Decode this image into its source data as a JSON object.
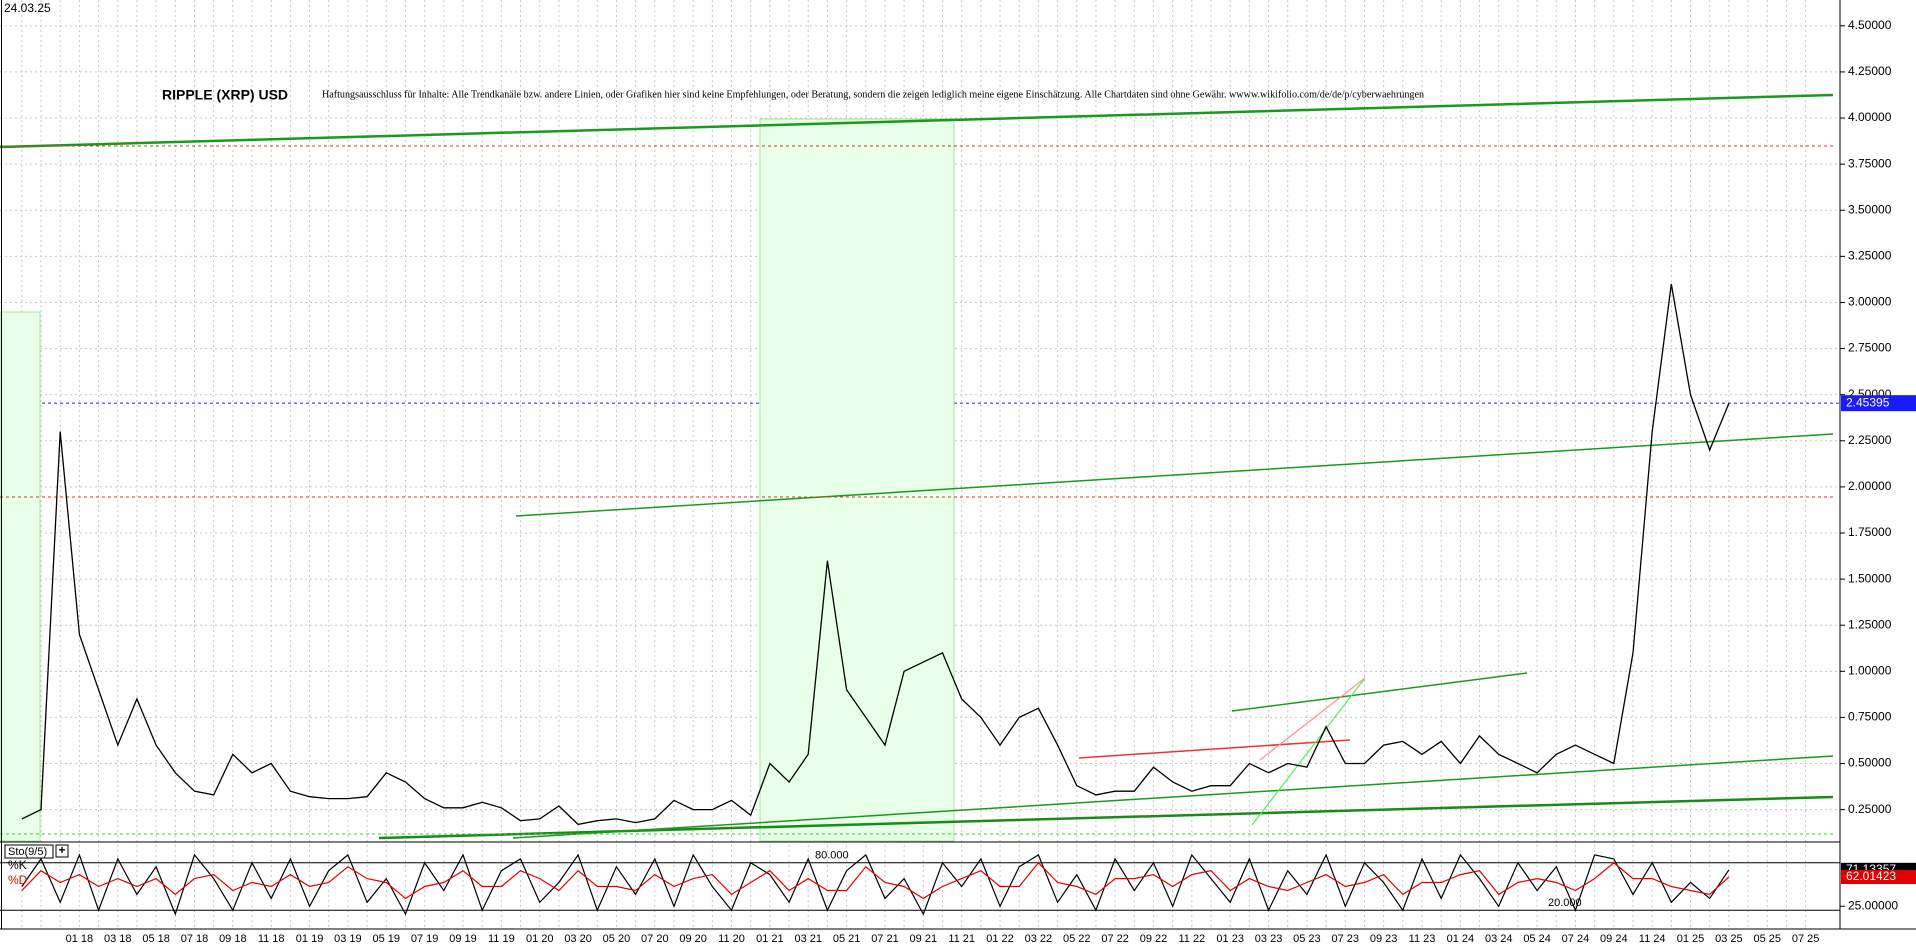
{
  "date": "24.03.25",
  "chart_data": [
    {
      "type": "line",
      "title": "RIPPLE (XRP) USD",
      "subtitle": "Haftungsausschluss für Inhalte: Alle Trendkanäle bzw. andere Linien, oder Grafiken hier sind keine Empfehlungen, oder Beratung, sondern die zeigen lediglich meine eigene Einschätzung. Alle Chartdaten sind ohne Gewähr.  wwww.wikifolio.com/de/de/p/cyberwaehrungen",
      "categories": [
        null,
        null,
        null,
        "01 18",
        null,
        "03 18",
        null,
        "05 18",
        null,
        "07 18",
        null,
        "09 18",
        null,
        "11 18",
        null,
        "01 19",
        null,
        "03 19",
        null,
        "05 19",
        null,
        "07 19",
        null,
        "09 19",
        null,
        "11 19",
        null,
        "01 20",
        null,
        "03 20",
        null,
        "05 20",
        null,
        "07 20",
        null,
        "09 20",
        null,
        "11 20",
        null,
        "01 21",
        null,
        "03 21",
        null,
        "05 21",
        null,
        "07 21",
        null,
        "09 21",
        null,
        "11 21",
        null,
        "01 22",
        null,
        "03 22",
        null,
        "05 22",
        null,
        "07 22",
        null,
        "09 22",
        null,
        "11 22",
        null,
        "01 23",
        null,
        "03 23",
        null,
        "05 23",
        null,
        "07 23",
        null,
        "09 23",
        null,
        "11 23",
        null,
        "01 24",
        null,
        "03 24",
        null,
        "05 24",
        null,
        "07 24",
        null,
        "09 24",
        null,
        "11 24",
        null,
        "01 25",
        null,
        "03 25",
        null,
        "05 25",
        null,
        "07 25"
      ],
      "values": [
        0.2,
        0.25,
        2.3,
        1.2,
        0.9,
        0.6,
        0.85,
        0.6,
        0.45,
        0.35,
        0.33,
        0.55,
        0.45,
        0.5,
        0.35,
        0.32,
        0.31,
        0.31,
        0.32,
        0.45,
        0.4,
        0.31,
        0.26,
        0.26,
        0.29,
        0.26,
        0.19,
        0.2,
        0.27,
        0.17,
        0.19,
        0.2,
        0.18,
        0.2,
        0.3,
        0.25,
        0.25,
        0.3,
        0.22,
        0.5,
        0.4,
        0.55,
        1.6,
        0.9,
        0.75,
        0.6,
        1.0,
        1.05,
        1.1,
        0.85,
        0.75,
        0.6,
        0.75,
        0.8,
        0.6,
        0.38,
        0.33,
        0.35,
        0.35,
        0.48,
        0.4,
        0.35,
        0.38,
        0.38,
        0.5,
        0.45,
        0.5,
        0.48,
        0.7,
        0.5,
        0.5,
        0.6,
        0.62,
        0.55,
        0.62,
        0.5,
        0.65,
        0.55,
        0.5,
        0.45,
        0.55,
        0.6,
        0.55,
        0.5,
        1.1,
        2.3,
        3.1,
        2.5,
        2.2,
        2.45395,
        null,
        null,
        null,
        null
      ],
      "color": "#000000",
      "ylim": [
        0.08,
        4.64
      ],
      "yticks": [
        {
          "value": 0.25,
          "label": "0.25000"
        },
        {
          "value": 0.5,
          "label": "0.50000"
        },
        {
          "value": 0.75,
          "label": "0.75000"
        },
        {
          "value": 1,
          "label": "1.00000"
        },
        {
          "value": 1.25,
          "label": "1.25000"
        },
        {
          "value": 1.5,
          "label": "1.50000"
        },
        {
          "value": 1.75,
          "label": "1.75000"
        },
        {
          "value": 2,
          "label": "2.00000"
        },
        {
          "value": 2.25,
          "label": "2.25000"
        },
        {
          "value": 2.5,
          "label": "2.50000"
        },
        {
          "value": 2.75,
          "label": "2.75000"
        },
        {
          "value": 3,
          "label": "3.00000"
        },
        {
          "value": 3.25,
          "label": "3.25000"
        },
        {
          "value": 3.5,
          "label": "3.50000"
        },
        {
          "value": 3.75,
          "label": "3.75000"
        },
        {
          "value": 4,
          "label": "4.00000"
        },
        {
          "value": 4.25,
          "label": "4.25000"
        },
        {
          "value": 4.5,
          "label": "4.50000"
        }
      ],
      "grid": true
    },
    {
      "type": "line",
      "title": "Sto(9/5)",
      "series": [
        {
          "name": "%K",
          "color": "#000000",
          "values": [
            50,
            85,
            30,
            90,
            20,
            85,
            40,
            75,
            15,
            90,
            60,
            20,
            80,
            35,
            85,
            25,
            70,
            90,
            30,
            60,
            15,
            80,
            45,
            90,
            20,
            70,
            85,
            30,
            55,
            90,
            20,
            75,
            40,
            85,
            25,
            90,
            50,
            20,
            80,
            65,
            30,
            85,
            20,
            70,
            90,
            35,
            60,
            15,
            80,
            50,
            85,
            25,
            75,
            90,
            30,
            65,
            20,
            85,
            45,
            80,
            25,
            90,
            60,
            30,
            85,
            20,
            70,
            40,
            90,
            25,
            80,
            55,
            20,
            85,
            35,
            90,
            60,
            25,
            80,
            45,
            75,
            20,
            90,
            85,
            40,
            80,
            30,
            55,
            35,
            71.13357,
            null,
            null,
            null,
            null
          ]
        },
        {
          "name": "%D",
          "color": "#e00000",
          "values": [
            45,
            70,
            55,
            65,
            50,
            60,
            50,
            60,
            40,
            60,
            65,
            45,
            55,
            50,
            65,
            50,
            55,
            75,
            60,
            55,
            35,
            50,
            55,
            70,
            50,
            50,
            70,
            60,
            45,
            70,
            50,
            50,
            45,
            65,
            50,
            60,
            65,
            40,
            55,
            70,
            45,
            60,
            45,
            45,
            75,
            55,
            50,
            35,
            50,
            60,
            70,
            50,
            50,
            80,
            55,
            50,
            40,
            60,
            60,
            65,
            50,
            65,
            70,
            45,
            60,
            50,
            45,
            55,
            65,
            50,
            55,
            65,
            40,
            55,
            55,
            65,
            70,
            40,
            55,
            60,
            55,
            45,
            60,
            80,
            60,
            60,
            50,
            45,
            40,
            62.01423,
            null,
            null,
            null,
            null
          ]
        }
      ],
      "ylim": [
        0,
        100
      ],
      "yticks": [
        {
          "value": 25,
          "label": "25.00000"
        }
      ],
      "levels": [
        {
          "value": 80,
          "label": "80.000"
        },
        {
          "value": 20,
          "label": "20.000"
        }
      ],
      "grid": true
    }
  ]
}
